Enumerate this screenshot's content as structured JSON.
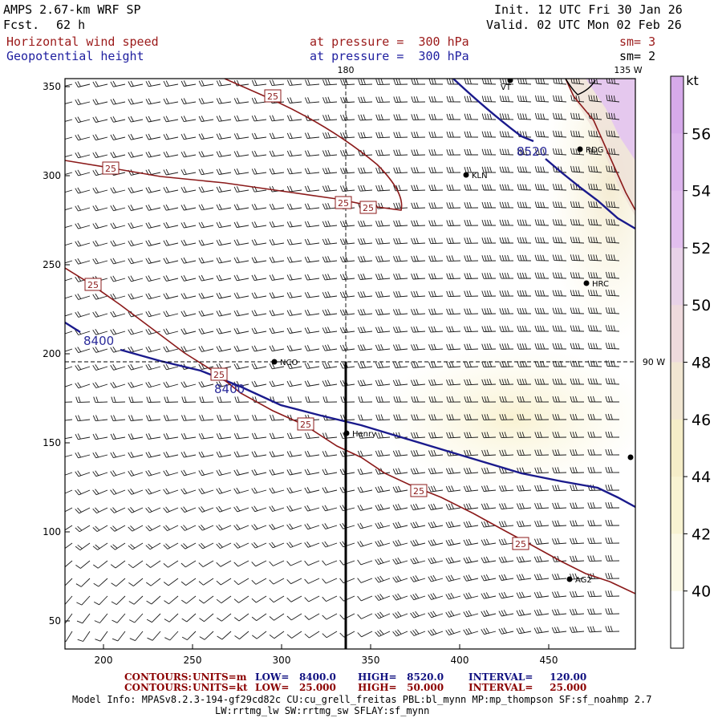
{
  "header": {
    "model": "AMPS 2.67-km WRF SP",
    "fcst_label": "Fcst.",
    "fcst_value": "62 h",
    "init": "Init. 12 UTC Fri 30 Jan 26",
    "valid": "Valid. 02 UTC Mon 02 Feb 26",
    "field1": "Horizontal wind speed",
    "field1_level": "at pressure =  300 hPa",
    "field1_sm": "sm= 3",
    "field2": "Geopotential height",
    "field2_level": "at pressure =  300 hPa",
    "field2_sm": "sm= 2"
  },
  "map": {
    "x_ticks": [
      "200",
      "250",
      "300",
      "350",
      "400",
      "450"
    ],
    "y_ticks": [
      "350",
      "300",
      "250",
      "200",
      "150",
      "100",
      "50"
    ],
    "meridian_top": "180",
    "meridian_corner": "135 W",
    "meridian_right": "90 W",
    "stations": [
      {
        "name": "RDG"
      },
      {
        "name": "KLN"
      },
      {
        "name": "HRC"
      },
      {
        "name": "NCO"
      },
      {
        "name": "Henry"
      },
      {
        "name": "AG2"
      },
      {
        "name": "VT"
      }
    ],
    "height_contours": [
      "8520",
      "8400",
      "8400"
    ],
    "speed_contour_labels": [
      "25",
      "25",
      "25",
      "25",
      "25",
      "25",
      "25",
      "25",
      "25"
    ]
  },
  "colorbar": {
    "unit": "kt",
    "ticks": [
      "56",
      "54",
      "52",
      "50",
      "48",
      "46",
      "44",
      "42",
      "40"
    ],
    "colors": [
      "#d6aaea",
      "#dcb4ec",
      "#e2bfee",
      "#e8d2e8",
      "#eedadd",
      "#f1e6d2",
      "#f5edc8",
      "#f8f3d2",
      "#fbf8e4",
      "#ffffff"
    ]
  },
  "footer": {
    "c1_label": "CONTOURS:",
    "c1_units": "UNITS=m",
    "c1_low": "LOW=   8400.0",
    "c1_high": "HIGH=   8520.0",
    "c1_interval": "INTERVAL=     120.00",
    "c2_label": "CONTOURS:",
    "c2_units": "UNITS=kt",
    "c2_low": "LOW=   25.000",
    "c2_high": "HIGH=   50.000",
    "c2_interval": "INTERVAL=     25.000",
    "model_info": "Model Info: MPASv8.2.3-194-gf29cd82c CU:cu_grell_freitas PBL:bl_mynn MP:mp_thompson SF:sf_noahmp 2.7",
    "model_info2": "LW:rrtmg_lw SW:rrtmg_sw SFLAY:sf_mynn"
  }
}
